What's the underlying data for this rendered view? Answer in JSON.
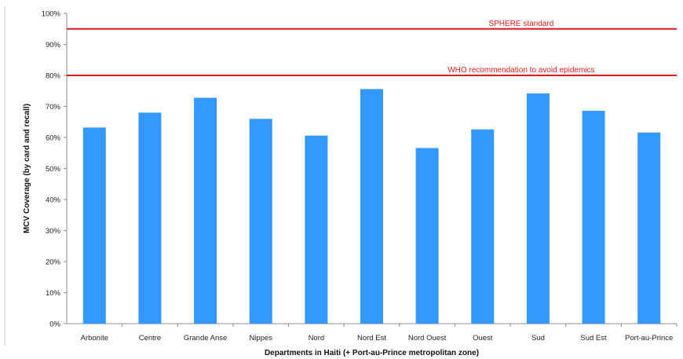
{
  "chart_data": {
    "type": "bar",
    "categories": [
      "Arbonite",
      "Centre",
      "Grande Anse",
      "Nippes",
      "Nord",
      "Nord Est",
      "Nord Ouest",
      "Ouest",
      "Sud",
      "Sud Est",
      "Port-au-Prince"
    ],
    "values": [
      63.2,
      68.0,
      72.8,
      66.0,
      60.6,
      75.6,
      56.6,
      62.6,
      74.2,
      68.6,
      61.6
    ],
    "xlabel": "Departments in Haiti (+ Port-au-Prince metropolitan zone)",
    "ylabel": "MCV Coverage (by card and recall)",
    "ylim": [
      0,
      100
    ],
    "yticks": [
      "0%",
      "10%",
      "20%",
      "30%",
      "40%",
      "50%",
      "60%",
      "70%",
      "80%",
      "90%",
      "100%"
    ],
    "grid": false,
    "bar_color": "#3399ff",
    "reference_lines": [
      {
        "label": "SPHERE standard",
        "value": 95,
        "color": "#e01b1b"
      },
      {
        "label": "WHO recommendation to avoid epidemics",
        "value": 80,
        "color": "#e01b1b"
      }
    ]
  }
}
